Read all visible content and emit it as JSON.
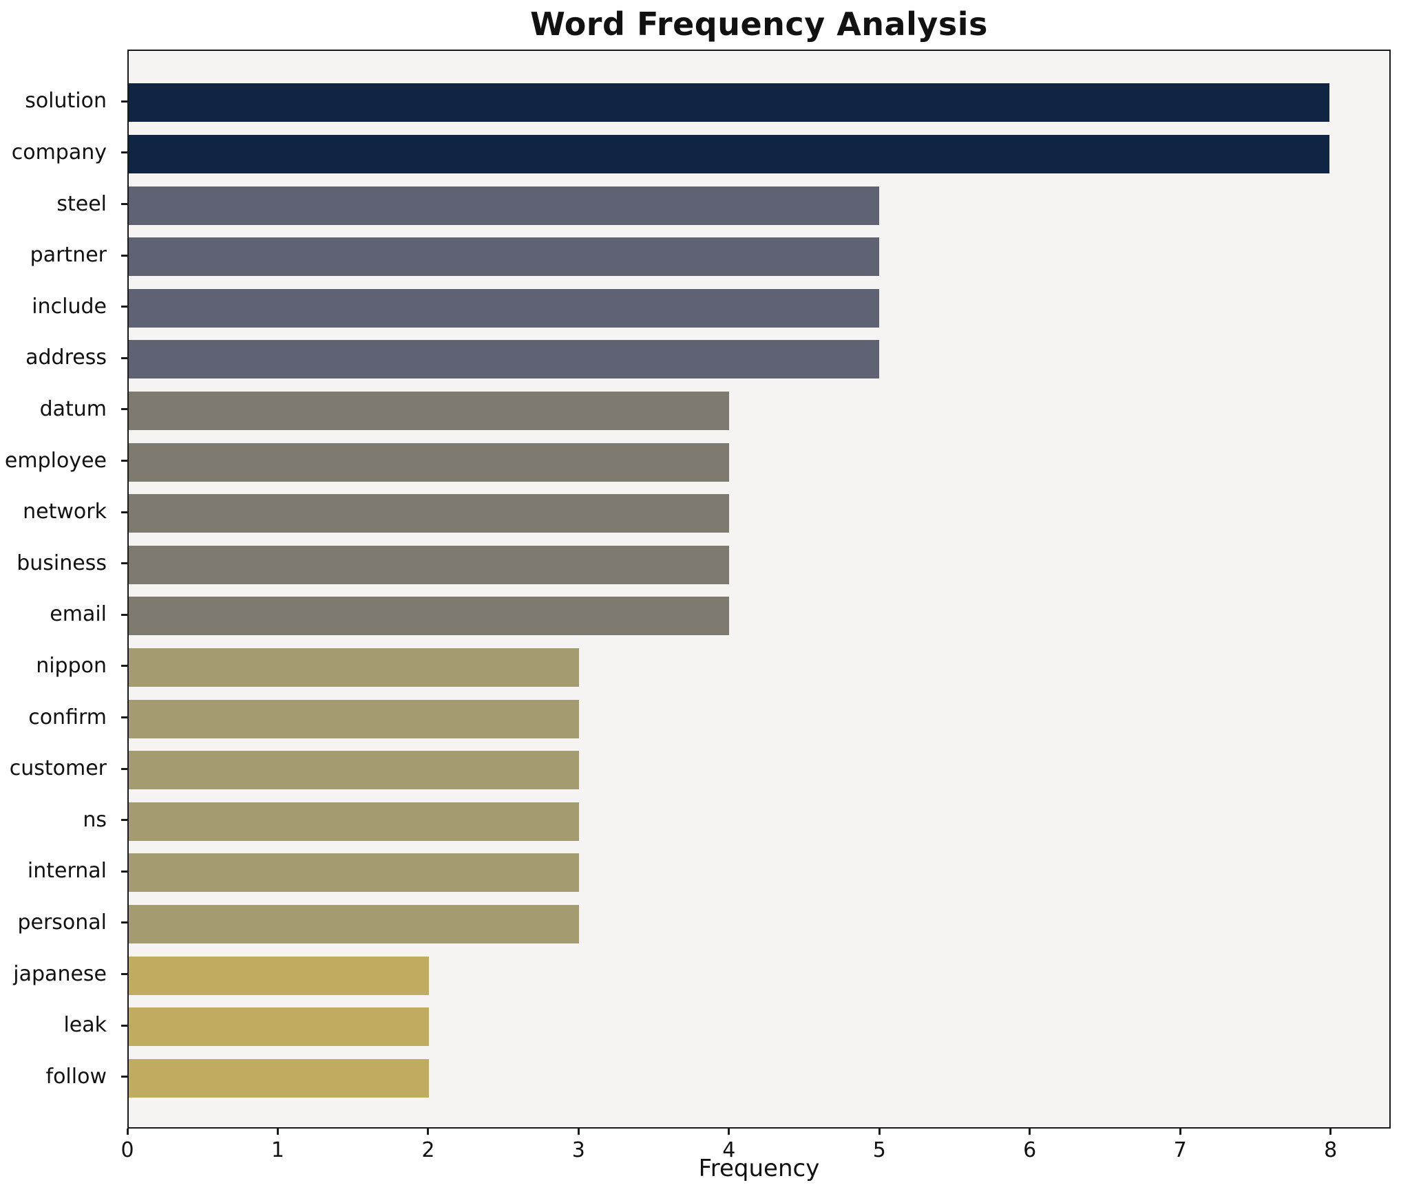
{
  "chart_data": {
    "type": "bar",
    "orientation": "horizontal",
    "title": "Word Frequency Analysis",
    "xlabel": "Frequency",
    "ylabel": "",
    "categories": [
      "solution",
      "company",
      "steel",
      "partner",
      "include",
      "address",
      "datum",
      "employee",
      "network",
      "business",
      "email",
      "nippon",
      "confirm",
      "customer",
      "ns",
      "internal",
      "personal",
      "japanese",
      "leak",
      "follow"
    ],
    "values": [
      8,
      8,
      5,
      5,
      5,
      5,
      4,
      4,
      4,
      4,
      4,
      3,
      3,
      3,
      3,
      3,
      3,
      2,
      2,
      2
    ],
    "bar_colors": [
      "#102444",
      "#102444",
      "#5e6272",
      "#5e6272",
      "#5e6272",
      "#5e6272",
      "#7e7a70",
      "#7e7a70",
      "#7e7a70",
      "#7e7a70",
      "#7e7a70",
      "#a49b70",
      "#a49b70",
      "#a49b70",
      "#a49b70",
      "#a49b70",
      "#a49b70",
      "#c0ac60",
      "#c0ac60",
      "#c0ac60"
    ],
    "xlim": [
      0,
      8.4
    ],
    "xticks": [
      0,
      1,
      2,
      3,
      4,
      5,
      6,
      7,
      8
    ],
    "grid": false,
    "legend": "none",
    "colors": {
      "plot_background": "#f5f4f2",
      "figure_background": "#ffffff",
      "axis": "#1a1a1a",
      "text": "#111111"
    }
  }
}
